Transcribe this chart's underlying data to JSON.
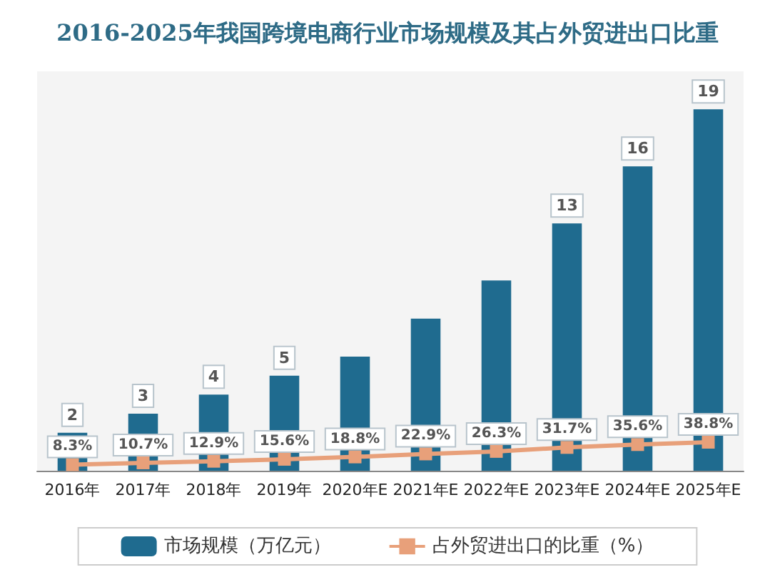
{
  "chart_data": {
    "type": "bar",
    "title": "2016-2025年我国跨境电商行业市场规模及其占外贸进出口比重",
    "categories": [
      "2016年",
      "2017年",
      "2018年",
      "2019年",
      "2020年E",
      "2021年E",
      "2022年E",
      "2023年E",
      "2024年E",
      "2025年E"
    ],
    "series": [
      {
        "name": "市场规模（万亿元）",
        "type": "bar",
        "color": "#1f6b8f",
        "values": [
          2,
          3,
          4,
          5,
          6,
          8,
          10,
          13,
          16,
          19
        ],
        "value_labels": [
          "2",
          "3",
          "4",
          "5",
          null,
          null,
          null,
          "13",
          "16",
          "19"
        ]
      },
      {
        "name": "占外贸进出口的比重（%）",
        "type": "line",
        "axis": "y2",
        "color": "#e8a07a",
        "values": [
          8.3,
          10.7,
          12.9,
          15.6,
          18.8,
          22.9,
          26.3,
          31.7,
          35.6,
          38.8
        ],
        "value_labels": [
          "8.3%",
          "10.7%",
          "12.9%",
          "15.6%",
          "18.8%",
          "22.9%",
          "26.3%",
          "31.7%",
          "35.6%",
          "38.8%"
        ]
      }
    ],
    "marker": "square",
    "legend": "bottom",
    "grid": false
  }
}
